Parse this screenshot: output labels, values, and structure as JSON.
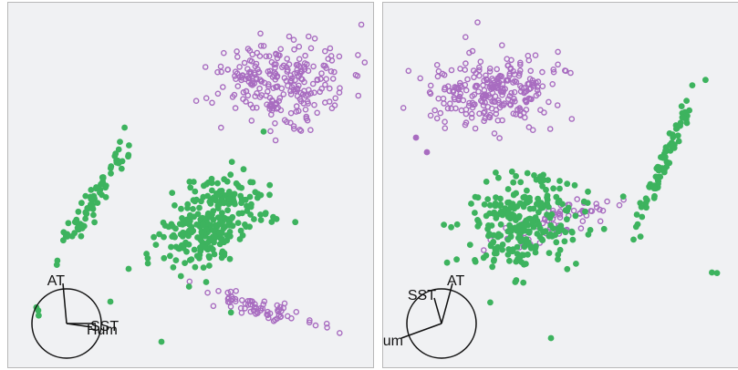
{
  "colors": {
    "purple": "#a86cc0",
    "green": "#3db35e",
    "panel_bg": "#f0f1f3",
    "axis": "#111111"
  },
  "chart_data": [
    {
      "type": "scatter",
      "title": "",
      "axis_labels": [
        "AT",
        "SST",
        "Hum"
      ],
      "clusters": [
        {
          "color": "purple",
          "marker": "hollow",
          "cx": 0.75,
          "cy": 0.78,
          "sx": 0.09,
          "sy": 0.055,
          "rot": 0.0,
          "n": 260
        },
        {
          "color": "purple",
          "marker": "hollow",
          "cx": 0.7,
          "cy": 0.16,
          "sx": 0.075,
          "sy": 0.015,
          "rot": -0.22,
          "n": 70
        },
        {
          "color": "green",
          "marker": "filled",
          "cx": 0.56,
          "cy": 0.39,
          "sx": 0.085,
          "sy": 0.05,
          "rot": 0.75,
          "n": 270
        },
        {
          "color": "green",
          "marker": "filled",
          "cx": 0.24,
          "cy": 0.47,
          "sx": 0.085,
          "sy": 0.012,
          "rot": 1.05,
          "n": 75
        },
        {
          "color": "green",
          "marker": "filled",
          "cx": 0.08,
          "cy": 0.16,
          "sx": 0.01,
          "sy": 0.01,
          "rot": 0.0,
          "n": 3
        }
      ],
      "outliers": [
        {
          "color": "green",
          "x": 0.42,
          "y": 0.07
        },
        {
          "color": "green",
          "x": 0.28,
          "y": 0.18
        },
        {
          "color": "green",
          "x": 0.33,
          "y": 0.27
        }
      ],
      "axes": [
        {
          "label": "AT",
          "dx": -0.01,
          "dy": 0.11
        },
        {
          "label": "SST",
          "dx": 0.08,
          "dy": 0.0
        },
        {
          "label": "Hum",
          "dx": 0.07,
          "dy": -0.01
        }
      ]
    },
    {
      "type": "scatter",
      "title": "",
      "axis_labels": [
        "AT",
        "SST",
        "Hum"
      ],
      "clusters": [
        {
          "color": "purple",
          "marker": "hollow",
          "cx": 0.31,
          "cy": 0.76,
          "sx": 0.095,
          "sy": 0.05,
          "rot": 0.05,
          "n": 260
        },
        {
          "color": "purple",
          "marker": "hollow",
          "cx": 0.48,
          "cy": 0.4,
          "sx": 0.09,
          "sy": 0.025,
          "rot": 0.35,
          "n": 65
        },
        {
          "color": "green",
          "marker": "filled",
          "cx": 0.39,
          "cy": 0.39,
          "sx": 0.085,
          "sy": 0.065,
          "rot": 0.2,
          "n": 260
        },
        {
          "color": "green",
          "marker": "filled",
          "cx": 0.77,
          "cy": 0.56,
          "sx": 0.11,
          "sy": 0.008,
          "rot": 1.18,
          "n": 85
        },
        {
          "color": "green",
          "marker": "filled",
          "cx": 0.91,
          "cy": 0.26,
          "sx": 0.004,
          "sy": 0.004,
          "rot": 0.0,
          "n": 2
        }
      ],
      "outliers": [
        {
          "color": "green",
          "x": 0.46,
          "y": 0.08
        },
        {
          "color": "purple",
          "x": 0.09,
          "y": 0.63
        },
        {
          "color": "purple",
          "x": 0.12,
          "y": 0.59
        }
      ],
      "axes": [
        {
          "label": "AT",
          "dx": 0.03,
          "dy": 0.11
        },
        {
          "label": "SST",
          "dx": -0.02,
          "dy": 0.07
        },
        {
          "label": "Hum",
          "dx": -0.11,
          "dy": -0.04
        }
      ]
    }
  ]
}
